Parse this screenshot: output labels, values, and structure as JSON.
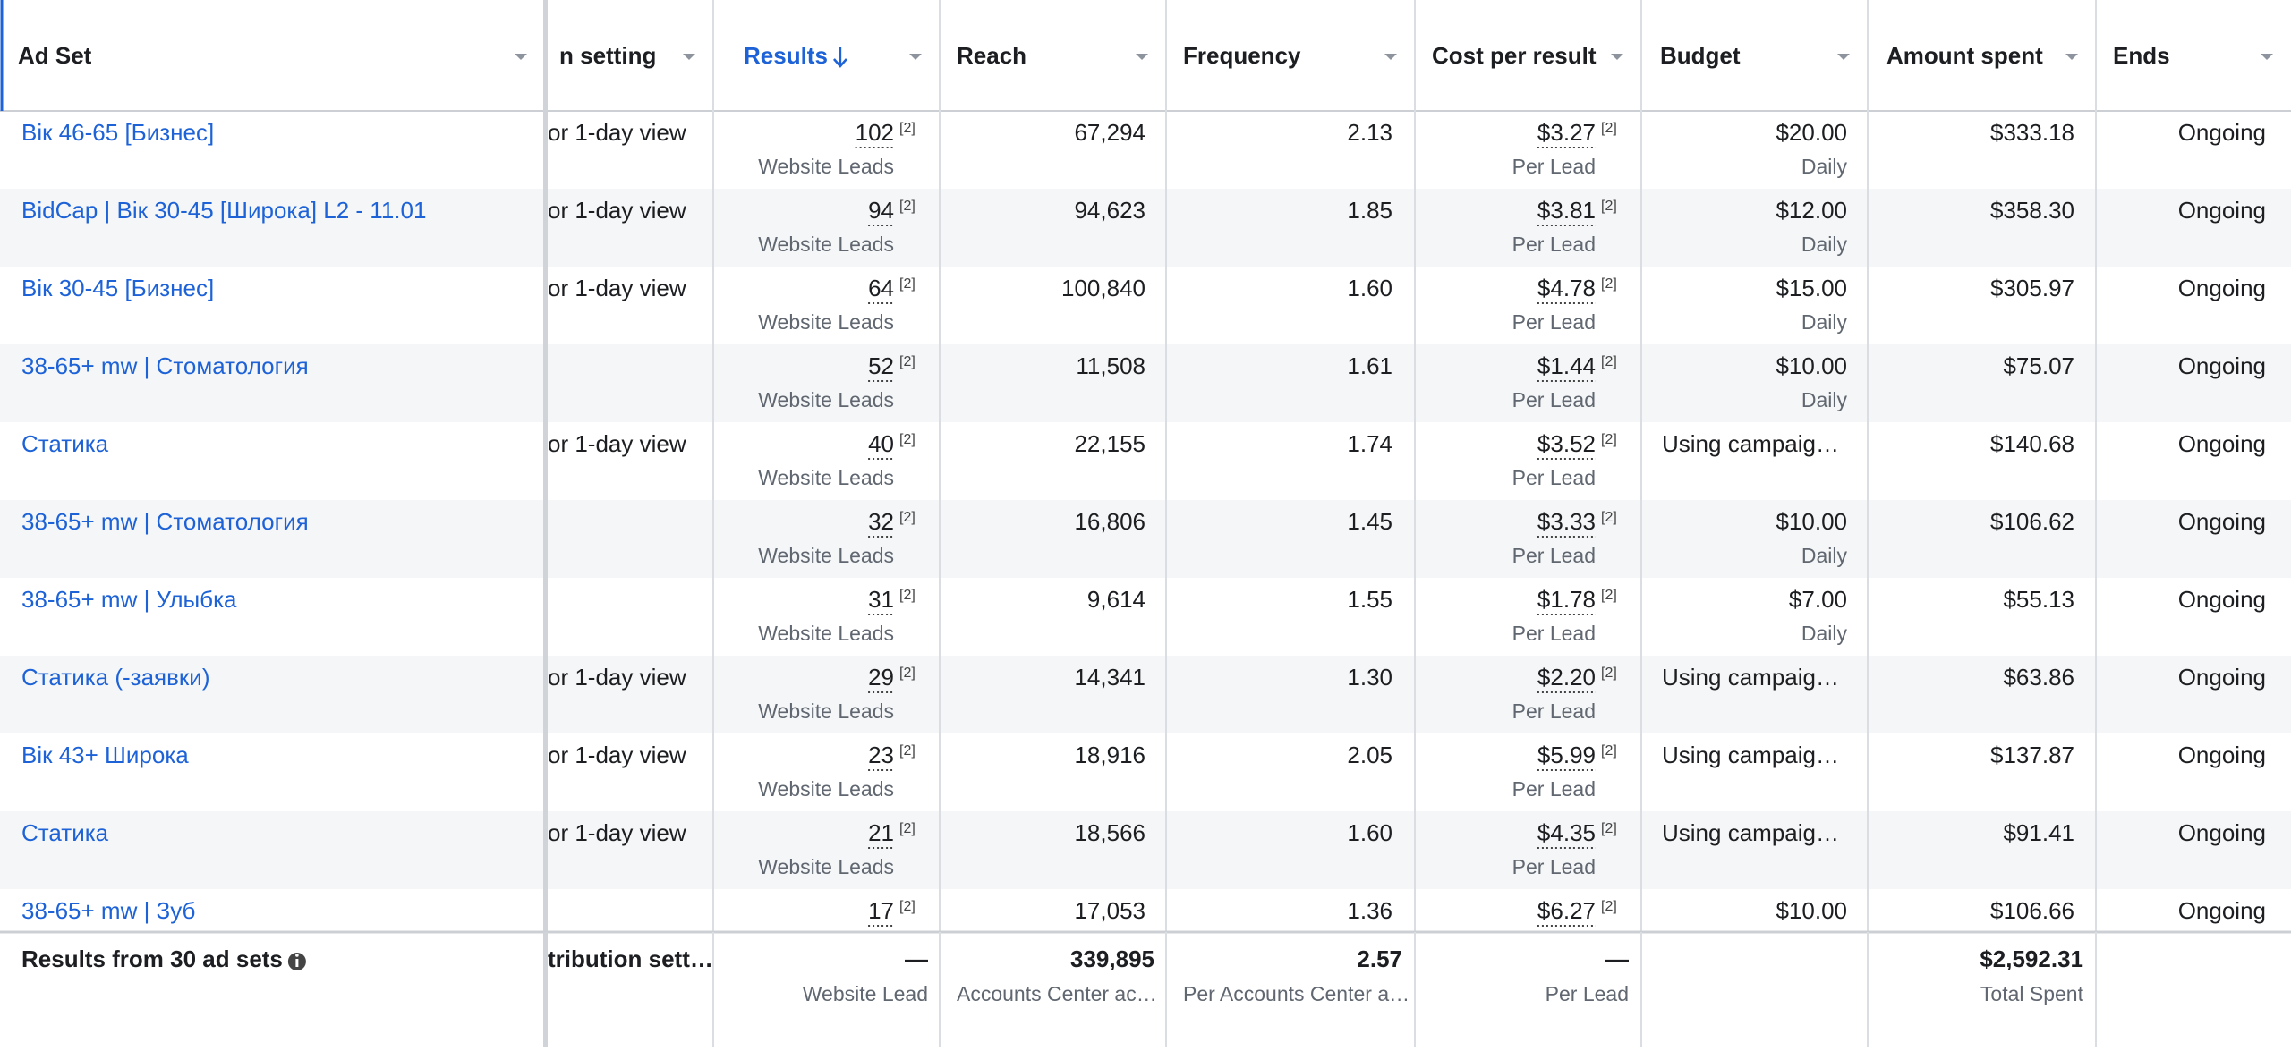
{
  "table": {
    "columns": [
      "Ad Set",
      "n setting",
      "Results",
      "Reach",
      "Frequency",
      "Cost per result",
      "Budget",
      "Amount spent",
      "Ends"
    ],
    "rows": [
      {
        "ad_set": "Вік 46-65 [Бизнес]",
        "attribution": "or 1-day view",
        "results": "102",
        "results_note": "[2]",
        "results_type": "Website Leads",
        "reach": "67,294",
        "frequency": "2.13",
        "cost": "$3.27",
        "cost_note": "[2]",
        "cost_type": "Per Lead",
        "budget": "$20.00",
        "budget_type": "Daily",
        "amount_spent": "$333.18",
        "ends": "Ongoing"
      },
      {
        "ad_set": "BidCap | Вік 30-45 [Широка] L2 - 11.01",
        "attribution": "or 1-day view",
        "results": "94",
        "results_note": "[2]",
        "results_type": "Website Leads",
        "reach": "94,623",
        "frequency": "1.85",
        "cost": "$3.81",
        "cost_note": "[2]",
        "cost_type": "Per Lead",
        "budget": "$12.00",
        "budget_type": "Daily",
        "amount_spent": "$358.30",
        "ends": "Ongoing"
      },
      {
        "ad_set": "Вік 30-45 [Бизнес]",
        "attribution": "or 1-day view",
        "results": "64",
        "results_note": "[2]",
        "results_type": "Website Leads",
        "reach": "100,840",
        "frequency": "1.60",
        "cost": "$4.78",
        "cost_note": "[2]",
        "cost_type": "Per Lead",
        "budget": "$15.00",
        "budget_type": "Daily",
        "amount_spent": "$305.97",
        "ends": "Ongoing"
      },
      {
        "ad_set": "38-65+ mw | Стоматология",
        "results": "52",
        "results_note": "[2]",
        "results_type": "Website Leads",
        "reach": "11,508",
        "frequency": "1.61",
        "cost": "$1.44",
        "cost_note": "[2]",
        "cost_type": "Per Lead",
        "budget": "$10.00",
        "budget_type": "Daily",
        "amount_spent": "$75.07",
        "ends": "Ongoing"
      },
      {
        "ad_set": "Статика",
        "attribution": "or 1-day view",
        "results": "40",
        "results_note": "[2]",
        "results_type": "Website Leads",
        "reach": "22,155",
        "frequency": "1.74",
        "cost": "$3.52",
        "cost_note": "[2]",
        "cost_type": "Per Lead",
        "budget": "Using campaig…",
        "amount_spent": "$140.68",
        "ends": "Ongoing"
      },
      {
        "ad_set": "38-65+ mw | Стоматология",
        "results": "32",
        "results_note": "[2]",
        "results_type": "Website Leads",
        "reach": "16,806",
        "frequency": "1.45",
        "cost": "$3.33",
        "cost_note": "[2]",
        "cost_type": "Per Lead",
        "budget": "$10.00",
        "budget_type": "Daily",
        "amount_spent": "$106.62",
        "ends": "Ongoing"
      },
      {
        "ad_set": "38-65+ mw | Улыбка",
        "results": "31",
        "results_note": "[2]",
        "results_type": "Website Leads",
        "reach": "9,614",
        "frequency": "1.55",
        "cost": "$1.78",
        "cost_note": "[2]",
        "cost_type": "Per Lead",
        "budget": "$7.00",
        "budget_type": "Daily",
        "amount_spent": "$55.13",
        "ends": "Ongoing"
      },
      {
        "ad_set": "Статика (-заявки)",
        "attribution": "or 1-day view",
        "results": "29",
        "results_note": "[2]",
        "results_type": "Website Leads",
        "reach": "14,341",
        "frequency": "1.30",
        "cost": "$2.20",
        "cost_note": "[2]",
        "cost_type": "Per Lead",
        "budget": "Using campaig…",
        "amount_spent": "$63.86",
        "ends": "Ongoing"
      },
      {
        "ad_set": "Вік 43+ Широка",
        "attribution": "or 1-day view",
        "results": "23",
        "results_note": "[2]",
        "results_type": "Website Leads",
        "reach": "18,916",
        "frequency": "2.05",
        "cost": "$5.99",
        "cost_note": "[2]",
        "cost_type": "Per Lead",
        "budget": "Using campaig…",
        "amount_spent": "$137.87",
        "ends": "Ongoing"
      },
      {
        "ad_set": "Статика",
        "attribution": "or 1-day view",
        "results": "21",
        "results_note": "[2]",
        "results_type": "Website Leads",
        "reach": "18,566",
        "frequency": "1.60",
        "cost": "$4.35",
        "cost_note": "[2]",
        "cost_type": "Per Lead",
        "budget": "Using campaig…",
        "amount_spent": "$91.41",
        "ends": "Ongoing"
      },
      {
        "ad_set": "38-65+ mw | Зуб",
        "results": "17",
        "results_note": "[2]",
        "reach": "17,053",
        "frequency": "1.36",
        "cost": "$6.27",
        "cost_note": "[2]",
        "budget": "$10.00",
        "amount_spent": "$106.66",
        "ends": "Ongoing"
      }
    ],
    "footer": {
      "label": "Results from 30 ad sets",
      "attribution": "tribution sett…",
      "results": "—",
      "results_type": "Website Lead",
      "reach": "339,895",
      "reach_type": "Accounts Center ac…",
      "frequency": "2.57",
      "frequency_type": "Per Accounts Center a…",
      "cost": "—",
      "cost_type": "Per Lead",
      "amount_spent": "$2,592.31",
      "amount_type": "Total Spent"
    }
  }
}
